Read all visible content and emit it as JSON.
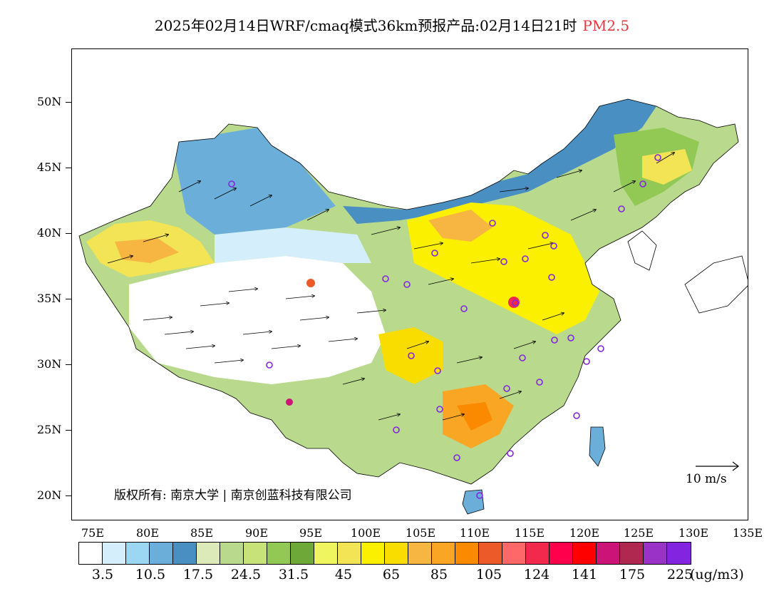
{
  "title": {
    "main": "2025年02月14日WRF/cmaq模式36km预报产品:02月14日21时",
    "pollutant": "PM2.5"
  },
  "axes": {
    "lat_labels": [
      "50N",
      "45N",
      "40N",
      "35N",
      "30N",
      "25N",
      "20N"
    ],
    "lon_labels": [
      "75E",
      "80E",
      "85E",
      "90E",
      "95E",
      "100E",
      "105E",
      "110E",
      "115E",
      "120E",
      "125E",
      "130E",
      "135E"
    ]
  },
  "legend": {
    "colors": [
      "#ffffff",
      "#d4eefb",
      "#9bd6f3",
      "#6aaed9",
      "#4a8fc2",
      "#dce9b8",
      "#b9d98c",
      "#c8e27a",
      "#92c955",
      "#6ea838",
      "#eef55f",
      "#f2e454",
      "#fbf000",
      "#fadd00",
      "#f7b542",
      "#f9a624",
      "#fb8a00",
      "#ec5a2a",
      "#ff6868",
      "#f2284c",
      "#ff004c",
      "#ff0000",
      "#cc1478",
      "#b02850",
      "#9a32c8",
      "#8224e0"
    ],
    "labels": [
      "3.5",
      "10.5",
      "17.5",
      "24.5",
      "31.5",
      "45",
      "65",
      "85",
      "105",
      "124",
      "141",
      "175",
      "225"
    ],
    "unit": "(ug/m3)"
  },
  "copyright": "版权所有: 南京大学 | 南京创蓝科技有限公司",
  "wind_scale": {
    "label": "10 m/s"
  }
}
